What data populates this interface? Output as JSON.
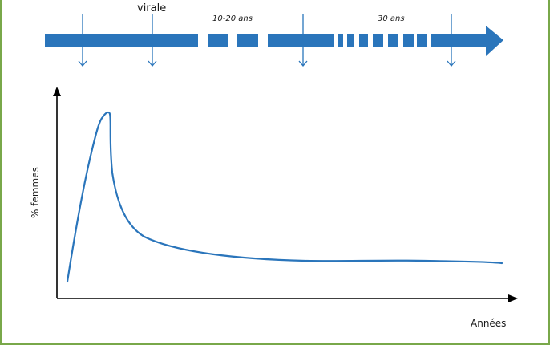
{
  "timeline": {
    "label_virale": "virale",
    "duration_1": "10-20 ans",
    "duration_2": "30 ans",
    "color": "#2a75bb"
  },
  "chart": {
    "ylabel": "% femmes",
    "xlabel": "Années",
    "curve_color": "#2a75bb",
    "axis_color": "#000000"
  },
  "frame_color": "#79a84a"
}
